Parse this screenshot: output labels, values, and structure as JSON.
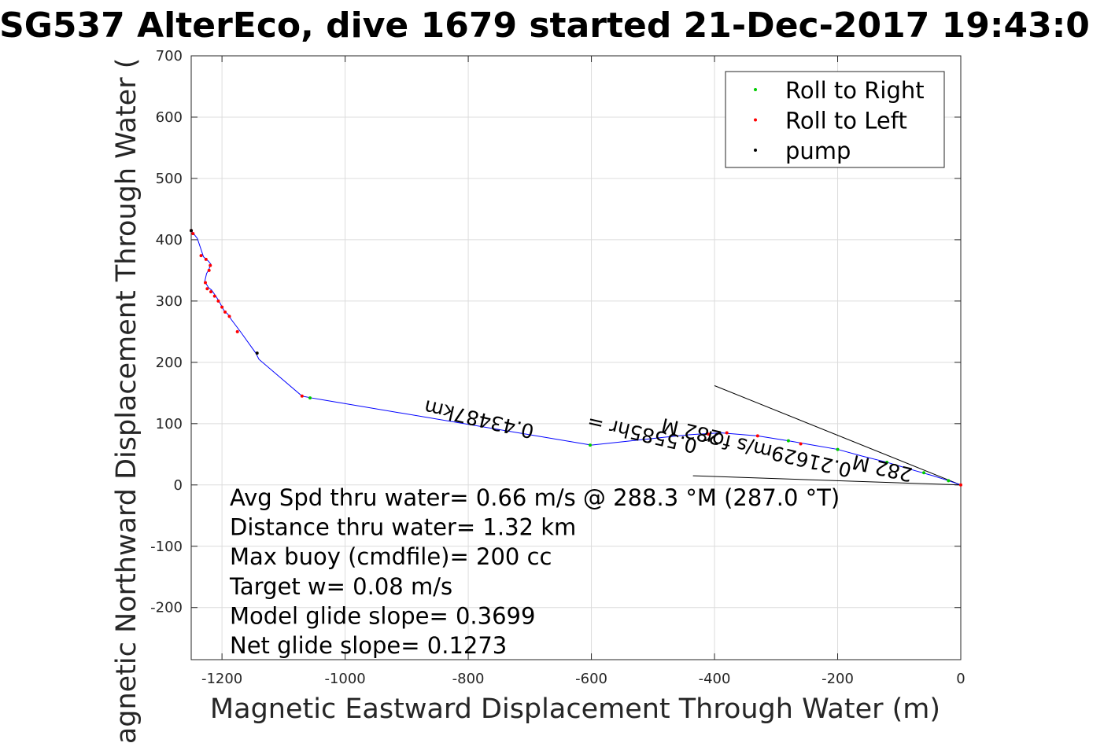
{
  "chart_data": {
    "type": "scatter",
    "title": "SG537 AlterEco, dive 1679 started 21-Dec-2017 19:43:0",
    "xlabel": "Magnetic Eastward Displacement Through Water (m)",
    "ylabel": "Magnetic Northward Displacement Through Water (",
    "xlim": [
      -1250,
      0
    ],
    "ylim": [
      -285,
      700
    ],
    "xticks": [
      -1200,
      -1000,
      -800,
      -600,
      -400,
      -200,
      0
    ],
    "yticks": [
      -200,
      -100,
      0,
      100,
      200,
      300,
      400,
      500,
      600,
      700
    ],
    "grid": true,
    "legend_position": "top-right",
    "legend": [
      {
        "label": "Roll to Right",
        "color": "#00cc00"
      },
      {
        "label": "Roll to Left",
        "color": "#ff0000"
      },
      {
        "label": "pump",
        "color": "#000000"
      }
    ],
    "track": {
      "name": "track",
      "color": "#0000ff",
      "x": [
        0,
        -20,
        -45,
        -80,
        -120,
        -160,
        -200,
        -240,
        -280,
        -330,
        -390,
        -440,
        -480,
        -600,
        -1055,
        -1070,
        -1140,
        -1145,
        -1170,
        -1185,
        -1190,
        -1197,
        -1205,
        -1210,
        -1217,
        -1222,
        -1228,
        -1225,
        -1222,
        -1218,
        -1222,
        -1230,
        -1240,
        -1250
      ],
      "y": [
        0,
        7,
        15,
        25,
        37,
        47,
        58,
        65,
        72,
        80,
        85,
        82,
        78,
        65,
        142,
        145,
        205,
        215,
        250,
        270,
        278,
        285,
        300,
        308,
        318,
        322,
        332,
        345,
        350,
        360,
        365,
        372,
        402,
        415
      ]
    },
    "roll_right_points": {
      "x": [
        -1057,
        -602,
        -20,
        -60,
        -120,
        -200,
        -280
      ],
      "y": [
        142,
        65,
        7,
        20,
        37,
        58,
        72
      ]
    },
    "roll_left_points": {
      "x": [
        -1070,
        -1175,
        -1188,
        -1195,
        -1200,
        -1206,
        -1212,
        -1218,
        -1224,
        -1227,
        -1221,
        -1219,
        -1226,
        -1234,
        -1247,
        -1250,
        0,
        -410,
        -380,
        -330,
        -260
      ],
      "y": [
        145,
        250,
        275,
        282,
        290,
        300,
        308,
        315,
        320,
        330,
        350,
        358,
        368,
        374,
        410,
        415,
        0,
        83,
        85,
        80,
        67
      ]
    },
    "pump_points": {
      "x": [
        -1143,
        -1250
      ],
      "y": [
        215,
        415
      ]
    },
    "reference_lines": [
      {
        "x": [
          0,
          -400
        ],
        "y": [
          0,
          162
        ]
      },
      {
        "x": [
          0,
          -435
        ],
        "y": [
          0,
          15
        ]
      }
    ],
    "annotations": [
      {
        "text": "0.43487km",
        "x": -780,
        "y": 118,
        "rotation": 193
      },
      {
        "text": "0.5585hr =",
        "x": -515,
        "y": 94,
        "rotation": 193
      },
      {
        "text": "282 M",
        "x": -435,
        "y": 98,
        "rotation": 193
      },
      {
        "text": "0.21629m/s for",
        "x": -295,
        "y": 62,
        "rotation": 193
      },
      {
        "text": "282 M",
        "x": -125,
        "y": 38,
        "rotation": 193
      }
    ],
    "stats": [
      "Avg Spd thru water=  0.66 m/s @ 288.3 °M (287.0 °T)",
      "Distance thru water=  1.32 km",
      "Max buoy (cmdfile)= 200 cc",
      "Target w= 0.08 m/s",
      "Model glide slope= 0.3699",
      "Net glide slope= 0.1273"
    ]
  }
}
